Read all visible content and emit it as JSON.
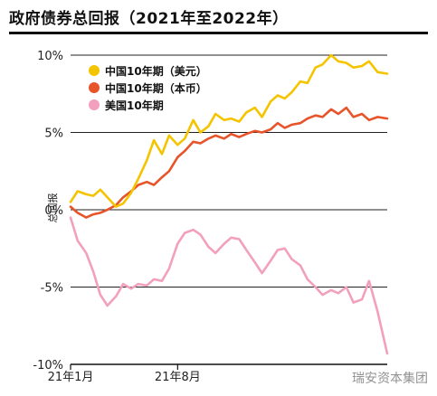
{
  "chart_data": {
    "type": "line",
    "title": "政府债券总回报（2021年至2022年）",
    "xlabel": "",
    "ylabel": "总回报",
    "ylim": [
      -10,
      10
    ],
    "yticks": [
      {
        "value": 10,
        "label": "10%"
      },
      {
        "value": 5,
        "label": "5%"
      },
      {
        "value": 0,
        "label": "0%"
      },
      {
        "value": -5,
        "label": "-5%"
      },
      {
        "value": -10,
        "label": "-10%"
      }
    ],
    "xlim": [
      "2021-01-01",
      "2022-09-20"
    ],
    "xticks": [
      {
        "value": "2021-01-01",
        "label": "21年1月"
      },
      {
        "value": "2021-08-01",
        "label": "21年8月"
      }
    ],
    "grid": "horizontal",
    "legend_position": "top-left",
    "series": [
      {
        "name": "中国10年期（美元）",
        "color": "#f5c400",
        "x": [
          "2021-01-01",
          "2021-01-15",
          "2021-02-01",
          "2021-02-15",
          "2021-03-01",
          "2021-03-15",
          "2021-04-01",
          "2021-04-15",
          "2021-05-01",
          "2021-05-15",
          "2021-06-01",
          "2021-06-15",
          "2021-07-01",
          "2021-07-15",
          "2021-08-01",
          "2021-08-15",
          "2021-09-01",
          "2021-09-15",
          "2021-10-01",
          "2021-10-15",
          "2021-11-01",
          "2021-11-15",
          "2021-12-01",
          "2021-12-15",
          "2022-01-01",
          "2022-01-15",
          "2022-02-01",
          "2022-02-15",
          "2022-03-01",
          "2022-03-15",
          "2022-04-01",
          "2022-04-15",
          "2022-05-01",
          "2022-05-15",
          "2022-06-01",
          "2022-06-15",
          "2022-07-01",
          "2022-07-15",
          "2022-08-01",
          "2022-08-15",
          "2022-09-01",
          "2022-09-20"
        ],
        "values": [
          0.5,
          1.2,
          1.0,
          0.9,
          1.3,
          0.8,
          0.2,
          0.4,
          1.1,
          2.0,
          3.2,
          4.5,
          3.6,
          4.8,
          4.2,
          4.6,
          5.8,
          5.0,
          5.4,
          6.2,
          5.8,
          5.9,
          5.7,
          6.3,
          6.6,
          6.0,
          7.0,
          7.4,
          7.2,
          7.6,
          8.3,
          8.2,
          9.2,
          9.4,
          10.0,
          9.6,
          9.5,
          9.2,
          9.3,
          9.6,
          8.9,
          8.8
        ]
      },
      {
        "name": "中国10年期（本币）",
        "color": "#e8542a",
        "x": [
          "2021-01-01",
          "2021-01-15",
          "2021-02-01",
          "2021-02-15",
          "2021-03-01",
          "2021-03-15",
          "2021-04-01",
          "2021-04-15",
          "2021-05-01",
          "2021-05-15",
          "2021-06-01",
          "2021-06-15",
          "2021-07-01",
          "2021-07-15",
          "2021-08-01",
          "2021-08-15",
          "2021-09-01",
          "2021-09-15",
          "2021-10-01",
          "2021-10-15",
          "2021-11-01",
          "2021-11-15",
          "2021-12-01",
          "2021-12-15",
          "2022-01-01",
          "2022-01-15",
          "2022-02-01",
          "2022-02-15",
          "2022-03-01",
          "2022-03-15",
          "2022-04-01",
          "2022-04-15",
          "2022-05-01",
          "2022-05-15",
          "2022-06-01",
          "2022-06-15",
          "2022-07-01",
          "2022-07-15",
          "2022-08-01",
          "2022-08-15",
          "2022-09-01",
          "2022-09-20"
        ],
        "values": [
          0.2,
          -0.2,
          -0.5,
          -0.3,
          -0.2,
          0.0,
          0.3,
          0.8,
          1.2,
          1.6,
          1.8,
          1.6,
          2.1,
          2.5,
          3.4,
          3.8,
          4.4,
          4.3,
          4.6,
          4.8,
          4.6,
          4.9,
          4.7,
          4.9,
          5.1,
          5.0,
          5.2,
          5.6,
          5.3,
          5.5,
          5.6,
          5.9,
          6.1,
          6.0,
          6.5,
          6.2,
          6.6,
          6.0,
          6.2,
          5.8,
          6.0,
          5.9
        ]
      },
      {
        "name": "美国10年期",
        "color": "#f2a0bd",
        "x": [
          "2021-01-01",
          "2021-01-15",
          "2021-02-01",
          "2021-02-15",
          "2021-03-01",
          "2021-03-15",
          "2021-04-01",
          "2021-04-15",
          "2021-05-01",
          "2021-05-15",
          "2021-06-01",
          "2021-06-15",
          "2021-07-01",
          "2021-07-15",
          "2021-08-01",
          "2021-08-15",
          "2021-09-01",
          "2021-09-15",
          "2021-10-01",
          "2021-10-15",
          "2021-11-01",
          "2021-11-15",
          "2021-12-01",
          "2021-12-15",
          "2022-01-01",
          "2022-01-15",
          "2022-02-01",
          "2022-02-15",
          "2022-03-01",
          "2022-03-15",
          "2022-04-01",
          "2022-04-15",
          "2022-05-01",
          "2022-05-15",
          "2022-06-01",
          "2022-06-15",
          "2022-07-01",
          "2022-07-15",
          "2022-08-01",
          "2022-08-15",
          "2022-09-01",
          "2022-09-20"
        ],
        "values": [
          -0.5,
          -2.0,
          -2.8,
          -4.0,
          -5.5,
          -6.2,
          -5.6,
          -4.8,
          -5.1,
          -4.8,
          -4.9,
          -4.5,
          -4.6,
          -3.8,
          -2.2,
          -1.5,
          -1.3,
          -1.6,
          -2.4,
          -2.8,
          -2.2,
          -1.8,
          -1.9,
          -2.6,
          -3.4,
          -4.1,
          -3.3,
          -2.6,
          -2.5,
          -3.2,
          -3.6,
          -4.5,
          -5.0,
          -5.5,
          -5.2,
          -5.4,
          -5.0,
          -6.0,
          -5.8,
          -4.6,
          -6.6,
          -9.3
        ]
      }
    ]
  },
  "watermark": "瑞安资本集团"
}
